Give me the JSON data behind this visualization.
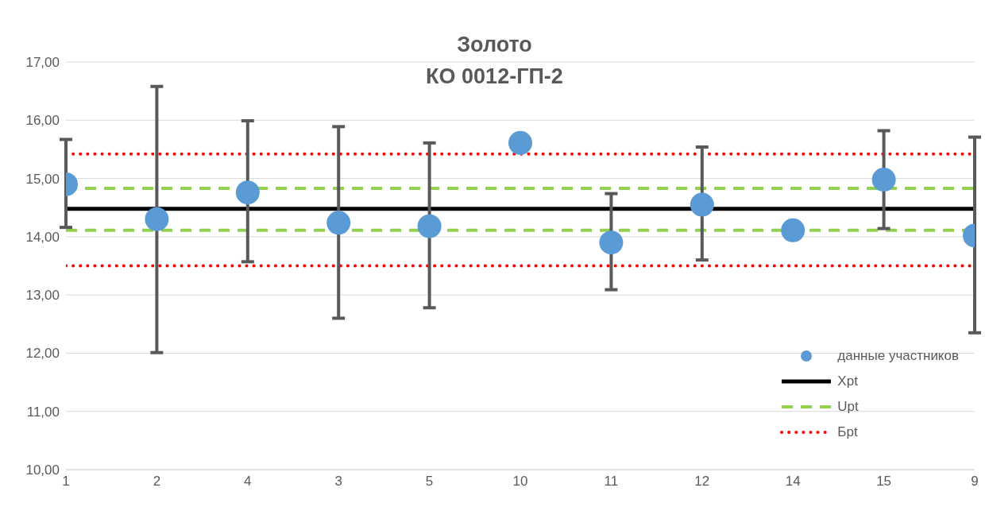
{
  "chart_data": {
    "type": "scatter",
    "title": "Золото",
    "subtitle": "КО 0012-ГП-2",
    "categories": [
      "1",
      "2",
      "4",
      "3",
      "5",
      "10",
      "11",
      "12",
      "14",
      "15",
      "9"
    ],
    "series": [
      {
        "name": "данные участников",
        "color": "#5b9bd5",
        "values": [
          14.9,
          14.3,
          14.76,
          14.24,
          14.18,
          15.61,
          13.9,
          14.55,
          14.11,
          14.98,
          14.02
        ],
        "errors": [
          [
            14.16,
            15.67
          ],
          [
            12.01,
            16.58
          ],
          [
            13.57,
            15.99
          ],
          [
            12.6,
            15.89
          ],
          [
            12.78,
            15.61
          ],
          null,
          [
            13.09,
            14.74
          ],
          [
            13.6,
            15.54
          ],
          null,
          [
            14.14,
            15.82
          ],
          [
            12.35,
            15.71
          ]
        ]
      }
    ],
    "ref_lines": [
      {
        "axis": "y",
        "value": 14.48,
        "label": "Xpt",
        "color": "#000000",
        "line_style": "solid"
      },
      {
        "axis": "y",
        "value": 14.83,
        "label": "Upt",
        "color": "#92d050",
        "line_style": "dashed"
      },
      {
        "axis": "y",
        "value": 14.11,
        "color": "#92d050",
        "line_style": "dashed"
      },
      {
        "axis": "y",
        "value": 15.42,
        "label": "Бpt",
        "color": "#ff0000",
        "line_style": "dotted"
      },
      {
        "axis": "y",
        "value": 13.5,
        "color": "#ff0000",
        "line_style": "dotted"
      }
    ],
    "ylim": [
      10,
      17
    ],
    "yticks": [
      {
        "value": 10,
        "label": "10,00"
      },
      {
        "value": 11,
        "label": "11,00"
      },
      {
        "value": 12,
        "label": "12,00"
      },
      {
        "value": 13,
        "label": "13,00"
      },
      {
        "value": 14,
        "label": "14,00"
      },
      {
        "value": 15,
        "label": "15,00"
      },
      {
        "value": 16,
        "label": "16,00"
      },
      {
        "value": 17,
        "label": "17,00"
      }
    ],
    "grid": "y",
    "marker": "circle",
    "legend": "bottom right"
  }
}
